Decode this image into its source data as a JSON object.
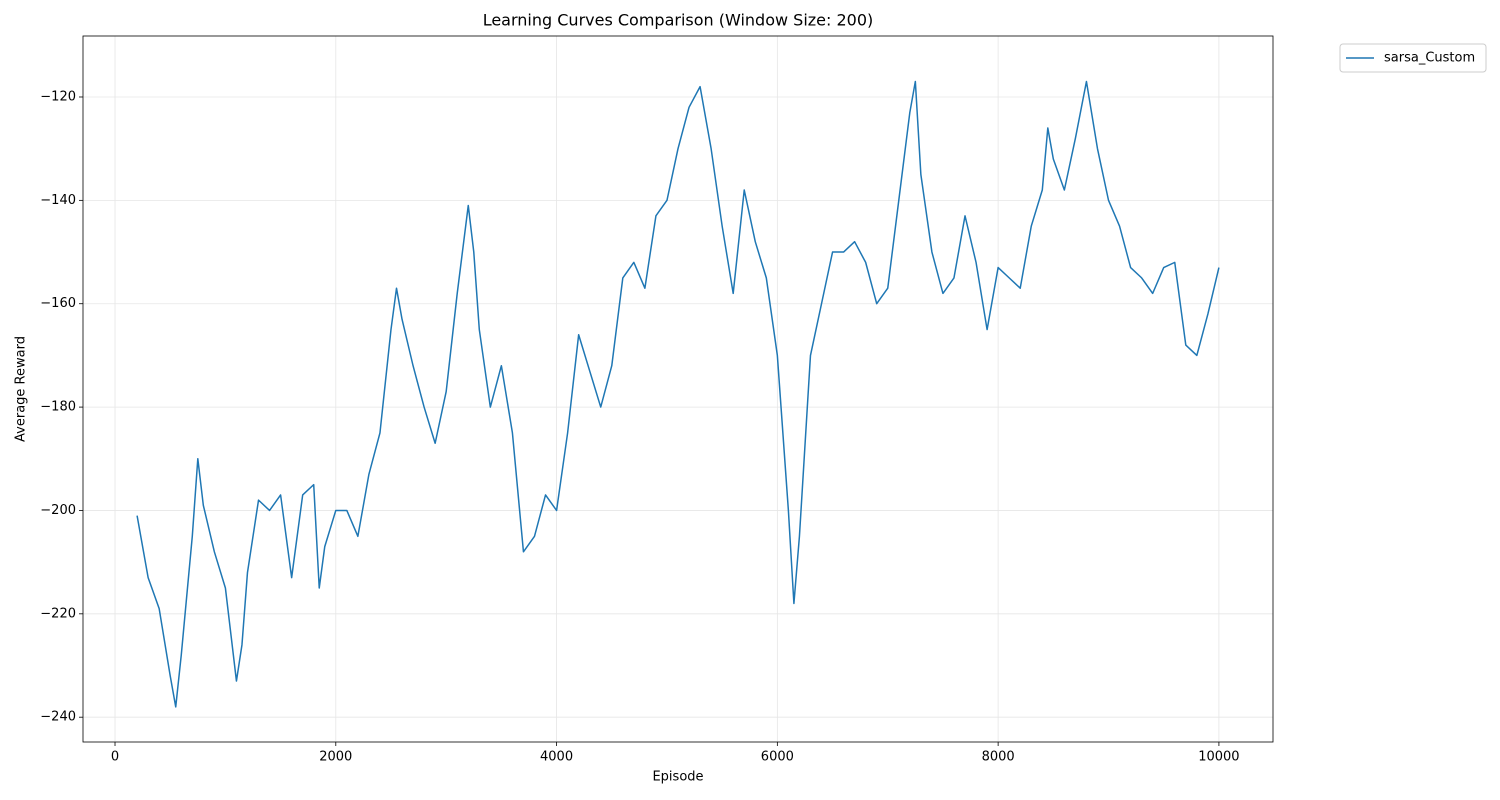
{
  "chart_data": {
    "type": "line",
    "title": "Learning Curves Comparison (Window Size: 200)",
    "xlabel": "Episode",
    "ylabel": "Average Reward",
    "x": [
      200,
      300,
      400,
      500,
      550,
      600,
      700,
      750,
      800,
      900,
      1000,
      1100,
      1150,
      1200,
      1300,
      1400,
      1500,
      1600,
      1700,
      1800,
      1850,
      1900,
      2000,
      2100,
      2200,
      2300,
      2400,
      2500,
      2550,
      2600,
      2700,
      2800,
      2900,
      3000,
      3100,
      3200,
      3250,
      3300,
      3400,
      3500,
      3600,
      3700,
      3800,
      3900,
      4000,
      4100,
      4200,
      4300,
      4400,
      4500,
      4600,
      4700,
      4800,
      4900,
      5000,
      5100,
      5200,
      5300,
      5400,
      5500,
      5600,
      5700,
      5800,
      5900,
      6000,
      6100,
      6150,
      6200,
      6300,
      6400,
      6500,
      6600,
      6700,
      6800,
      6900,
      7000,
      7100,
      7200,
      7250,
      7300,
      7400,
      7500,
      7600,
      7700,
      7800,
      7900,
      8000,
      8100,
      8200,
      8300,
      8400,
      8450,
      8500,
      8600,
      8700,
      8800,
      8900,
      9000,
      9100,
      9200,
      9300,
      9400,
      9500,
      9600,
      9700,
      9800,
      9900,
      10000
    ],
    "series": [
      {
        "name": "sarsa_Custom",
        "color": "#1f77b4",
        "values": [
          -201,
          -213,
          -219,
          -232,
          -238,
          -228,
          -205,
          -190,
          -199,
          -208,
          -215,
          -233,
          -226,
          -212,
          -198,
          -200,
          -197,
          -213,
          -197,
          -195,
          -215,
          -207,
          -200,
          -200,
          -205,
          -193,
          -185,
          -165,
          -157,
          -163,
          -172,
          -180,
          -187,
          -177,
          -158,
          -141,
          -150,
          -165,
          -180,
          -172,
          -185,
          -208,
          -205,
          -197,
          -200,
          -185,
          -166,
          -173,
          -180,
          -172,
          -155,
          -152,
          -157,
          -143,
          -140,
          -130,
          -122,
          -118,
          -130,
          -145,
          -158,
          -138,
          -148,
          -155,
          -170,
          -200,
          -218,
          -205,
          -170,
          -160,
          -150,
          -150,
          -148,
          -152,
          -160,
          -157,
          -140,
          -123,
          -117,
          -135,
          -150,
          -158,
          -155,
          -143,
          -152,
          -165,
          -153,
          -155,
          -157,
          -145,
          -138,
          -126,
          -132,
          -138,
          -128,
          -117,
          -130,
          -140,
          -145,
          -153,
          -155,
          -158,
          -153,
          -152,
          -168,
          -170,
          -162,
          -153
        ]
      }
    ],
    "xlim": [
      -290,
      10490
    ],
    "ylim": [
      -244.8,
      -108.2
    ],
    "xticks": [
      0,
      2000,
      4000,
      6000,
      8000,
      10000
    ],
    "yticks": [
      {
        "value": -240,
        "label": "−240"
      },
      {
        "value": -220,
        "label": "−220"
      },
      {
        "value": -200,
        "label": "−200"
      },
      {
        "value": -180,
        "label": "−180"
      },
      {
        "value": -160,
        "label": "−160"
      },
      {
        "value": -140,
        "label": "−140"
      },
      {
        "value": -120,
        "label": "−120"
      }
    ],
    "grid": true,
    "legend": "outside upper right"
  }
}
